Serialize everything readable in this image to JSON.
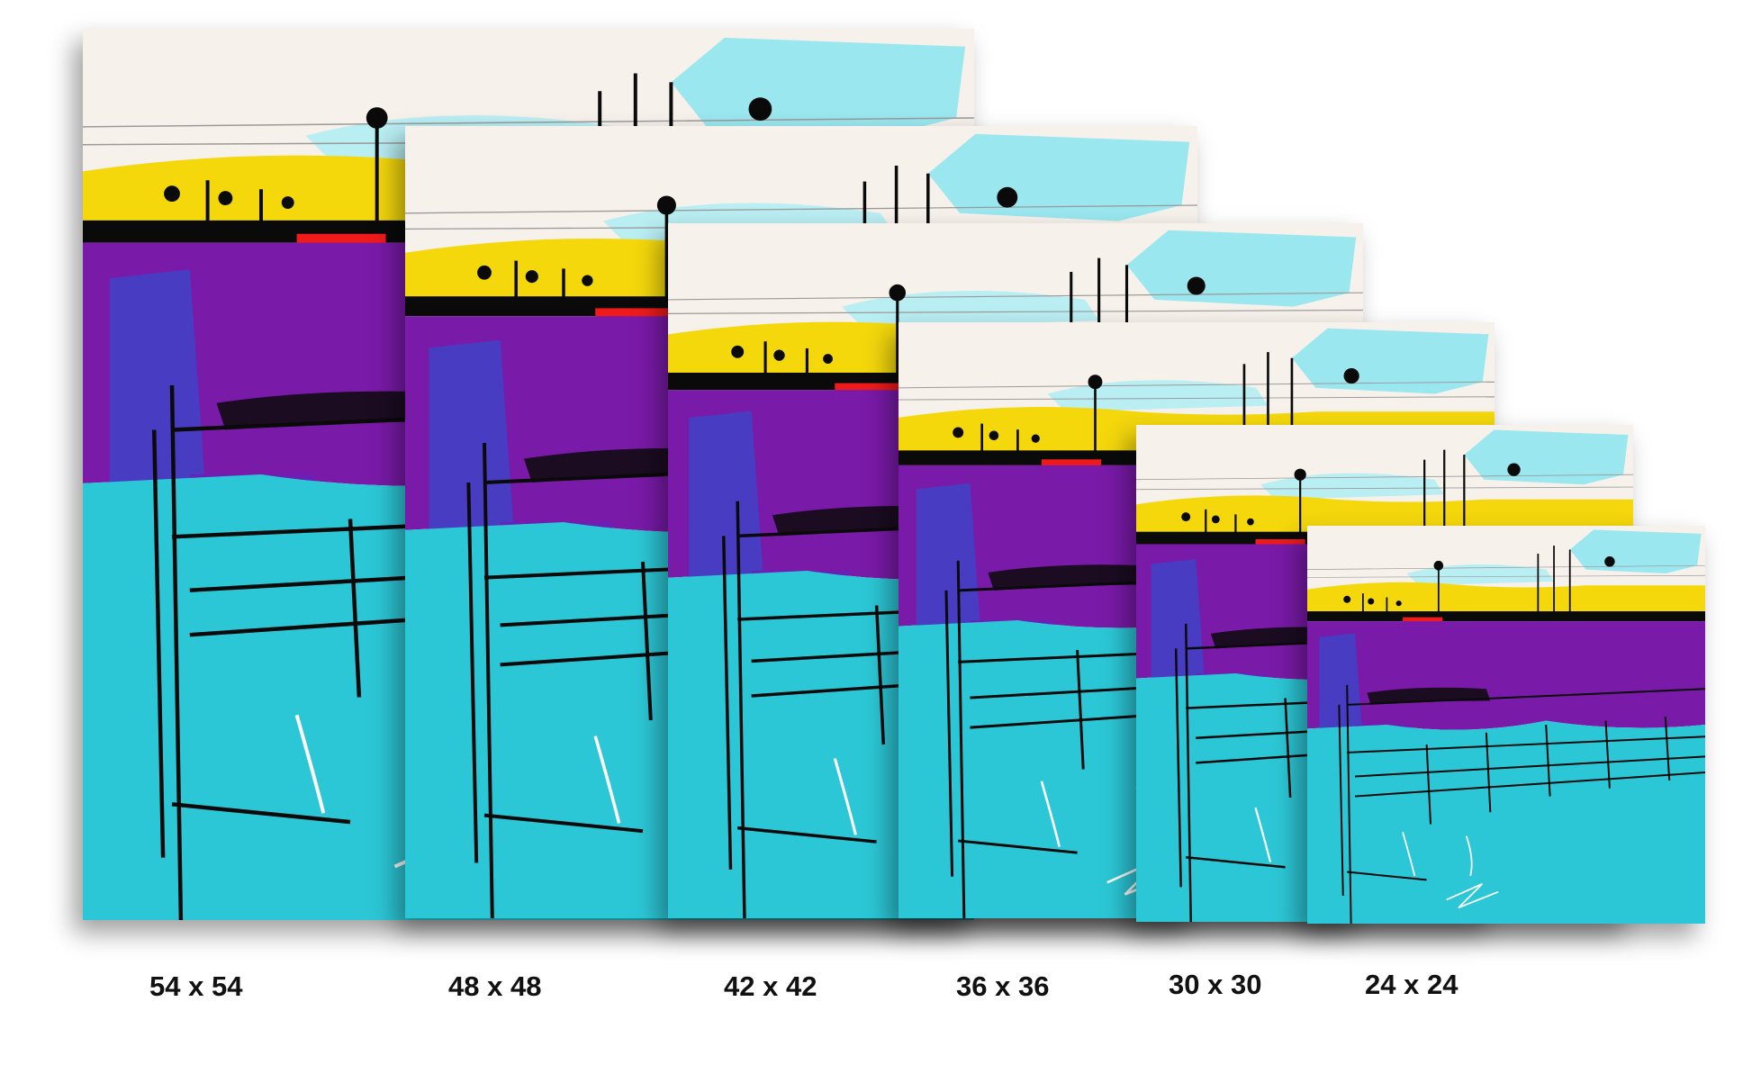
{
  "sizes": [
    {
      "label": "54 x 54"
    },
    {
      "label": "48 x 48"
    },
    {
      "label": "42 x 42"
    },
    {
      "label": "36 x 36"
    },
    {
      "label": "30 x 30"
    },
    {
      "label": "24 x 24"
    }
  ],
  "colors": {
    "background": "#ffffff",
    "sky": "#f7f1ec",
    "sky_wash": "#8fe6f0",
    "yellow": "#f4d80c",
    "red": "#ef1b1b",
    "purple": "#7a1aa8",
    "cyan": "#2cc7d6",
    "ink": "#0a0a0a"
  }
}
